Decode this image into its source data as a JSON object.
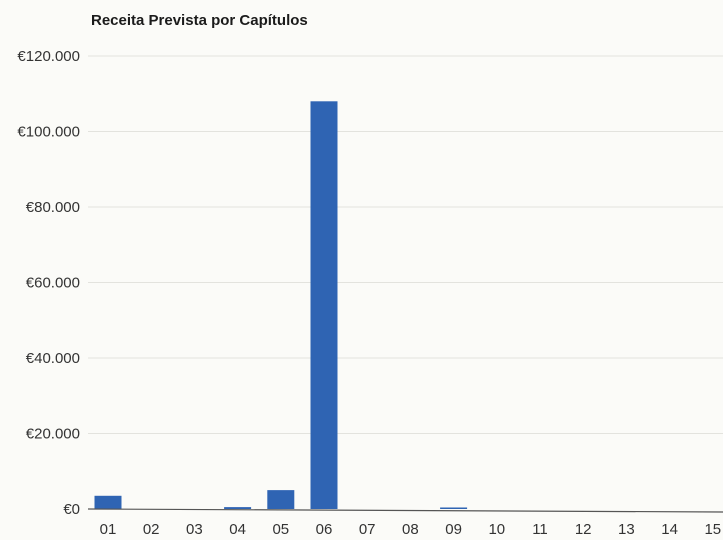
{
  "chart_data": {
    "type": "bar",
    "title": "Receita Prevista por Capítulos",
    "xlabel": "",
    "ylabel": "",
    "categories": [
      "01",
      "02",
      "03",
      "04",
      "05",
      "06",
      "07",
      "08",
      "09",
      "10",
      "11",
      "12",
      "13",
      "14",
      "15"
    ],
    "values": [
      3500,
      0,
      0,
      500,
      5000,
      108000,
      0,
      0,
      400,
      0,
      0,
      0,
      0,
      0,
      0
    ],
    "ylim": [
      0,
      120000
    ],
    "yticks": [
      0,
      20000,
      40000,
      60000,
      80000,
      100000,
      120000
    ],
    "ytick_labels": [
      "€0",
      "€20.000",
      "€40.000",
      "€60.000",
      "€80.000",
      "€100.000",
      "€120.000"
    ],
    "grid": true,
    "legend": "none",
    "bar_color": "#2f64b3"
  }
}
